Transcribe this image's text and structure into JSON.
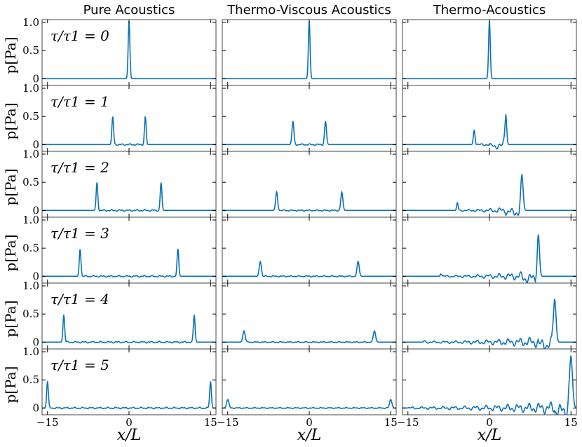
{
  "chart_data": {
    "type": "line",
    "column_titles": [
      "Pure Acoustics",
      "Thermo-Viscous Acoustics",
      "Thermo-Acoustics"
    ],
    "ylabel": "p[Pa]",
    "xlabel": "x/L",
    "xlim": [
      -16,
      16
    ],
    "ylim": [
      -0.12,
      1.05
    ],
    "xticks": [
      -15,
      0,
      15
    ],
    "xtick_labels": [
      "−15",
      "0",
      "15"
    ],
    "yticks": [
      0,
      0.5,
      1.0
    ],
    "ytick_labels": [
      "0",
      "0.5",
      "1.0"
    ],
    "row_labels": [
      "τ/τ1 = 0",
      "τ/τ1 = 1",
      "τ/τ1 = 2",
      "τ/τ1 = 3",
      "τ/τ1 = 4",
      "τ/τ1 = 5"
    ],
    "panels": [
      [
        {
          "peaks": [
            {
              "x": 0.0,
              "a": 1.02,
              "w": 0.22
            }
          ],
          "noise": 0,
          "noise_range": [
            0,
            0
          ]
        },
        {
          "peaks": [
            {
              "x": -3.0,
              "a": 0.49,
              "w": 0.22
            },
            {
              "x": 3.0,
              "a": 0.49,
              "w": 0.22
            }
          ],
          "noise": 0.015,
          "noise_range": [
            -3,
            3
          ]
        },
        {
          "peaks": [
            {
              "x": -5.9,
              "a": 0.49,
              "w": 0.22
            },
            {
              "x": 5.9,
              "a": 0.49,
              "w": 0.22
            }
          ],
          "noise": 0.015,
          "noise_range": [
            -5.9,
            5.9
          ]
        },
        {
          "peaks": [
            {
              "x": -9.0,
              "a": 0.48,
              "w": 0.22
            },
            {
              "x": 9.0,
              "a": 0.48,
              "w": 0.22
            }
          ],
          "noise": 0.015,
          "noise_range": [
            -9,
            9
          ]
        },
        {
          "peaks": [
            {
              "x": -12.0,
              "a": 0.48,
              "w": 0.22
            },
            {
              "x": 12.0,
              "a": 0.48,
              "w": 0.22
            }
          ],
          "noise": 0.015,
          "noise_range": [
            -12,
            12
          ]
        },
        {
          "peaks": [
            {
              "x": -15.0,
              "a": 0.47,
              "w": 0.22
            },
            {
              "x": 15.0,
              "a": 0.47,
              "w": 0.22
            }
          ],
          "noise": 0.015,
          "noise_range": [
            -15,
            15
          ]
        }
      ],
      [
        {
          "peaks": [
            {
              "x": 0.0,
              "a": 1.02,
              "w": 0.22
            }
          ],
          "noise": 0,
          "noise_range": [
            0,
            0
          ]
        },
        {
          "peaks": [
            {
              "x": -3.0,
              "a": 0.41,
              "w": 0.25
            },
            {
              "x": 3.0,
              "a": 0.41,
              "w": 0.25
            }
          ],
          "noise": 0.015,
          "noise_range": [
            -3,
            3
          ]
        },
        {
          "peaks": [
            {
              "x": -6.0,
              "a": 0.32,
              "w": 0.27
            },
            {
              "x": 6.0,
              "a": 0.32,
              "w": 0.27
            }
          ],
          "noise": 0.012,
          "noise_range": [
            -6,
            6
          ]
        },
        {
          "peaks": [
            {
              "x": -9.0,
              "a": 0.26,
              "w": 0.28
            },
            {
              "x": 9.0,
              "a": 0.26,
              "w": 0.28
            }
          ],
          "noise": 0.012,
          "noise_range": [
            -9,
            9
          ]
        },
        {
          "peaks": [
            {
              "x": -12.0,
              "a": 0.2,
              "w": 0.3
            },
            {
              "x": 12.0,
              "a": 0.2,
              "w": 0.3
            }
          ],
          "noise": 0.01,
          "noise_range": [
            -12,
            12
          ]
        },
        {
          "peaks": [
            {
              "x": -15.0,
              "a": 0.15,
              "w": 0.3
            },
            {
              "x": 15.0,
              "a": 0.15,
              "w": 0.3
            }
          ],
          "noise": 0.01,
          "noise_range": [
            -15,
            15
          ]
        }
      ],
      [
        {
          "peaks": [
            {
              "x": 0.0,
              "a": 1.02,
              "w": 0.22
            }
          ],
          "noise": 0,
          "noise_range": [
            0,
            0
          ]
        },
        {
          "peaks": [
            {
              "x": -2.8,
              "a": 0.26,
              "w": 0.22
            },
            {
              "x": 3.0,
              "a": 0.54,
              "w": 0.24
            }
          ],
          "noise": 0.03,
          "noise_range": [
            -2.8,
            3
          ]
        },
        {
          "peaks": [
            {
              "x": -5.9,
              "a": 0.13,
              "w": 0.2
            },
            {
              "x": 6.0,
              "a": 0.59,
              "w": 0.3
            }
          ],
          "noise": 0.03,
          "noise_range": [
            -6,
            6
          ]
        },
        {
          "peaks": [
            {
              "x": -8.9,
              "a": 0.05,
              "w": 0.2
            },
            {
              "x": 9.0,
              "a": 0.73,
              "w": 0.3
            }
          ],
          "noise": 0.035,
          "noise_range": [
            -9,
            9
          ]
        },
        {
          "peaks": [
            {
              "x": -12.0,
              "a": 0.02,
              "w": 0.2
            },
            {
              "x": 12.0,
              "a": 0.76,
              "w": 0.35
            }
          ],
          "noise": 0.04,
          "noise_range": [
            -12,
            12
          ]
        },
        {
          "peaks": [
            {
              "x": 15.0,
              "a": 0.9,
              "w": 0.4
            }
          ],
          "noise": 0.045,
          "noise_range": [
            -15,
            15
          ]
        }
      ]
    ]
  }
}
